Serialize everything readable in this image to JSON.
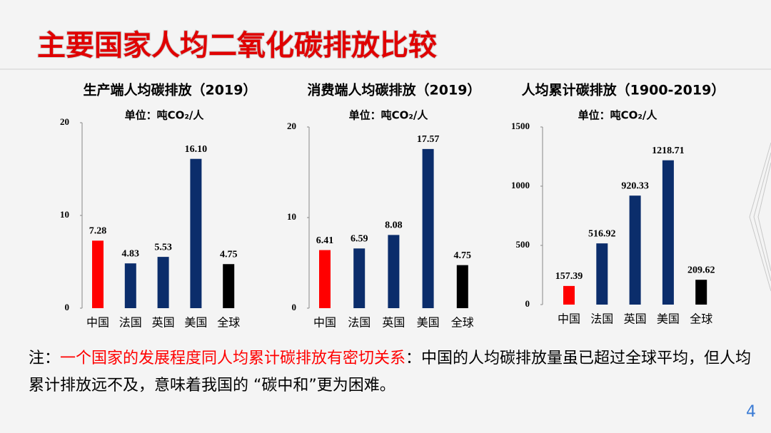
{
  "title": "主要国家人均二氧化碳排放比较",
  "note": [
    "注：",
    "一个国家的发展程度同人均累计碳排放有密切关系",
    "：中国的人均碳排放量虽已超过全球平均，但人均累计排放远不及，意味着我国的 “碳中和”更为困难。"
  ],
  "page_number": "4",
  "chart_data": [
    {
      "type": "bar",
      "title": "生产端人均碳排放（2019）",
      "subtitle": "单位：吨CO₂/人",
      "categories": [
        "中国",
        "法国",
        "英国",
        "美国",
        "全球"
      ],
      "values": [
        7.28,
        4.83,
        5.53,
        16.1,
        4.75
      ],
      "value_labels": [
        "7.28",
        "4.83",
        "5.53",
        "16.10",
        "4.75"
      ],
      "colors": [
        "#ff0000",
        "#0b2d6b",
        "#0b2d6b",
        "#0b2d6b",
        "#000000"
      ],
      "ylim": [
        0,
        20
      ],
      "yticks": [
        0,
        10,
        20
      ]
    },
    {
      "type": "bar",
      "title": "消费端人均碳排放（2019）",
      "subtitle": "单位：吨CO₂/人",
      "categories": [
        "中国",
        "法国",
        "英国",
        "美国",
        "全球"
      ],
      "values": [
        6.41,
        6.59,
        8.08,
        17.57,
        4.75
      ],
      "colors": [
        "#ff0000",
        "#0b2d6b",
        "#0b2d6b",
        "#0b2d6b",
        "#000000"
      ],
      "ylim": [
        0,
        20
      ],
      "yticks": [
        0,
        10,
        20
      ]
    },
    {
      "type": "bar",
      "title": "人均累计碳排放（1900-2019）",
      "subtitle": "单位：吨CO₂/人",
      "categories": [
        "中国",
        "法国",
        "英国",
        "美国",
        "全球"
      ],
      "values": [
        157.39,
        516.92,
        920.33,
        1218.71,
        209.62
      ],
      "colors": [
        "#ff0000",
        "#0b2d6b",
        "#0b2d6b",
        "#0b2d6b",
        "#000000"
      ],
      "ylim": [
        0,
        1500
      ],
      "yticks": [
        0,
        500,
        1000,
        1500
      ]
    }
  ]
}
